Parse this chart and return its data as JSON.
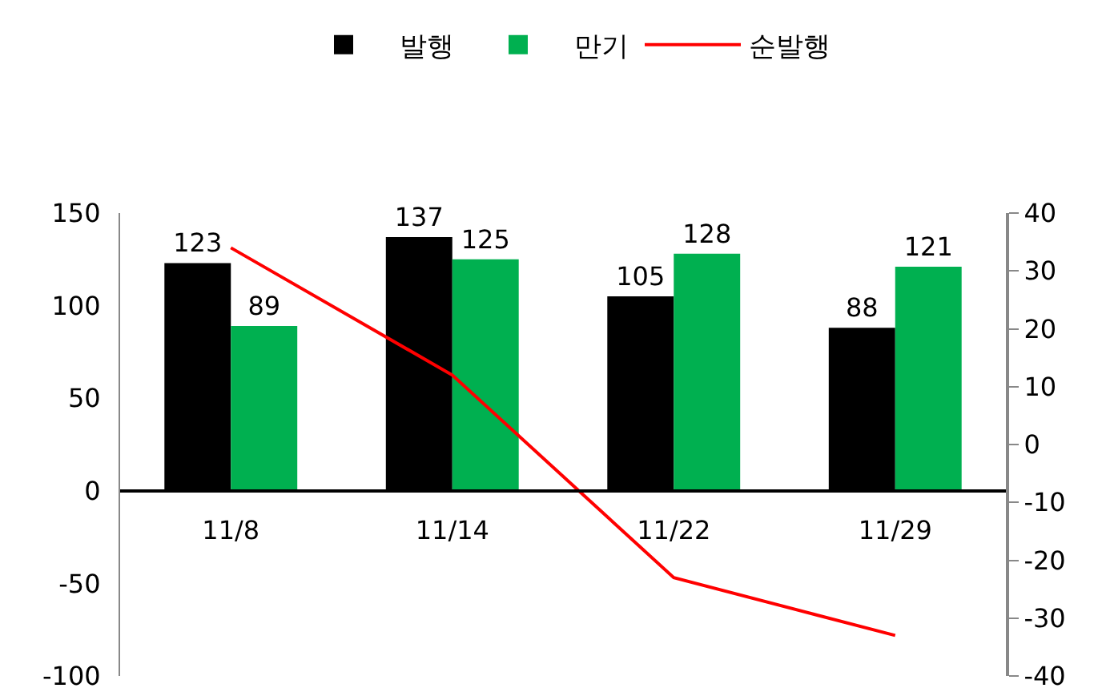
{
  "chart_data": {
    "type": "bar",
    "categories": [
      "11/8",
      "11/14",
      "11/22",
      "11/29"
    ],
    "series": [
      {
        "name": "발행",
        "color": "#000000",
        "values": [
          123,
          137,
          105,
          88
        ],
        "value_labels": [
          "123",
          "137",
          "105",
          "88"
        ]
      },
      {
        "name": "만기",
        "color": "#00b050",
        "values": [
          89,
          125,
          128,
          121
        ],
        "value_labels": [
          "89",
          "125",
          "128",
          "121"
        ]
      },
      {
        "name": "순발행",
        "type": "line",
        "axis": "y2",
        "color": "#ff0000",
        "values": [
          34,
          12,
          -23,
          -33
        ]
      }
    ],
    "ylim": [
      -100,
      150
    ],
    "yticks": [
      -100,
      -50,
      0,
      50,
      100,
      150
    ],
    "y2lim": [
      -40,
      40
    ],
    "y2ticks": [
      -40,
      -30,
      -20,
      -10,
      0,
      10,
      20,
      30,
      40
    ],
    "grid": false,
    "legend": "top",
    "marker": "none",
    "line_style": "solid"
  }
}
